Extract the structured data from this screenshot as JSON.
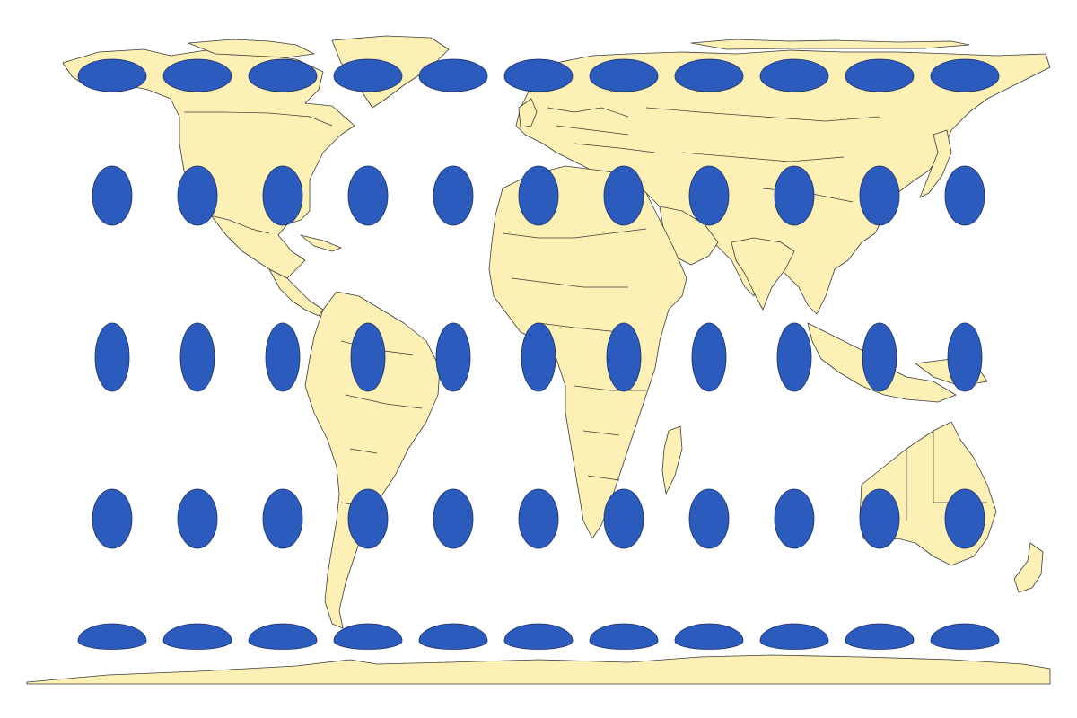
{
  "map": {
    "type": "world map with Tissot indicatrices",
    "colors": {
      "land": "#fdf0b4",
      "water": "#ffffff",
      "boundary": "#3a3a3a",
      "indicatrix": "#2a5bbd"
    },
    "indicatrix_grid": {
      "longitudes_deg": [
        -150,
        -120,
        -90,
        -60,
        -30,
        0,
        30,
        60,
        90,
        120,
        150
      ],
      "latitudes_deg": [
        60,
        30,
        0,
        -30,
        -60
      ],
      "count": 55
    }
  }
}
